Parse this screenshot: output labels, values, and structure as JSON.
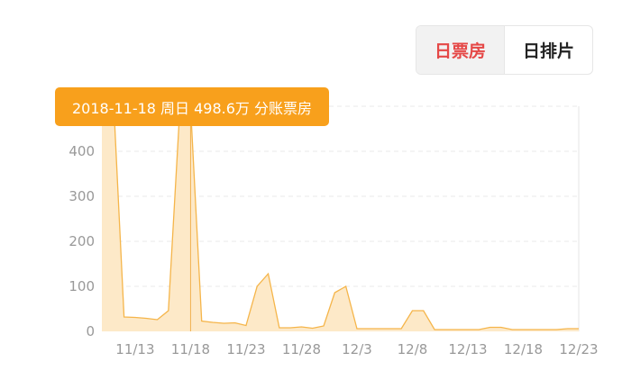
{
  "toggle": {
    "items": [
      {
        "label": "日票房",
        "active": true
      },
      {
        "label": "日排片",
        "active": false
      }
    ],
    "active_color": "#e54847"
  },
  "tooltip": {
    "text": "2018-11-18 周日 498.6万 分账票房",
    "date": "11/18",
    "color": "#f8a01c"
  },
  "chart_data": {
    "type": "area",
    "title": "",
    "xlabel": "",
    "ylabel": "",
    "ylim": [
      0,
      500
    ],
    "yticks": [
      0,
      100,
      200,
      300,
      400
    ],
    "grid": true,
    "line_color": "#f5b54a",
    "fill_color": "#fde9c8",
    "x_tick_labels": [
      "11/13",
      "11/18",
      "11/23",
      "11/28",
      "12/3",
      "12/8",
      "12/13",
      "12/18",
      "12/23"
    ],
    "x": [
      "11/10",
      "11/11",
      "11/12",
      "11/13",
      "11/14",
      "11/15",
      "11/16",
      "11/17",
      "11/18",
      "11/19",
      "11/20",
      "11/21",
      "11/22",
      "11/23",
      "11/24",
      "11/25",
      "11/26",
      "11/27",
      "11/28",
      "11/29",
      "11/30",
      "12/1",
      "12/2",
      "12/3",
      "12/4",
      "12/5",
      "12/6",
      "12/7",
      "12/8",
      "12/9",
      "12/10",
      "12/11",
      "12/12",
      "12/13",
      "12/14",
      "12/15",
      "12/16",
      "12/17",
      "12/18",
      "12/19",
      "12/20",
      "12/21",
      "12/22",
      "12/23"
    ],
    "values": [
      520,
      540,
      32,
      31,
      29,
      26,
      46,
      480,
      498.6,
      23,
      20,
      18,
      19,
      13,
      100,
      128,
      8,
      8,
      10,
      7,
      12,
      86,
      100,
      6,
      6,
      6,
      6,
      6,
      46,
      46,
      4,
      4,
      4,
      4,
      4,
      9,
      9,
      4,
      4,
      4,
      4,
      4,
      6,
      6
    ]
  }
}
